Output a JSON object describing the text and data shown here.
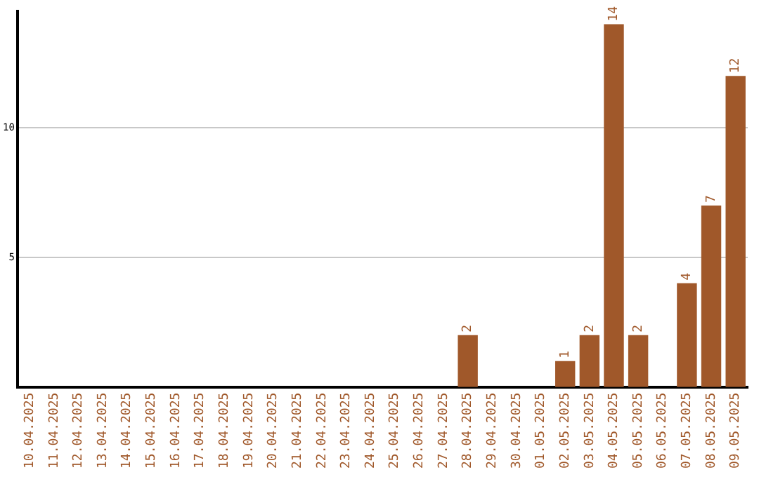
{
  "chart_data": {
    "type": "bar",
    "categories": [
      "10.04.2025",
      "11.04.2025",
      "12.04.2025",
      "13.04.2025",
      "14.04.2025",
      "15.04.2025",
      "16.04.2025",
      "17.04.2025",
      "18.04.2025",
      "19.04.2025",
      "20.04.2025",
      "21.04.2025",
      "22.04.2025",
      "23.04.2025",
      "24.04.2025",
      "25.04.2025",
      "26.04.2025",
      "27.04.2025",
      "28.04.2025",
      "29.04.2025",
      "30.04.2025",
      "01.05.2025",
      "02.05.2025",
      "03.05.2025",
      "04.05.2025",
      "05.05.2025",
      "06.05.2025",
      "07.05.2025",
      "08.05.2025",
      "09.05.2025"
    ],
    "values": [
      0,
      0,
      0,
      0,
      0,
      0,
      0,
      0,
      0,
      0,
      0,
      0,
      0,
      0,
      0,
      0,
      0,
      0,
      2,
      0,
      0,
      0,
      1,
      2,
      14,
      2,
      0,
      4,
      7,
      12
    ],
    "value_labels": [
      null,
      null,
      null,
      null,
      null,
      null,
      null,
      null,
      null,
      null,
      null,
      null,
      null,
      null,
      null,
      null,
      null,
      null,
      "2",
      null,
      null,
      null,
      "1",
      "2",
      "14",
      "2",
      null,
      "4",
      "7",
      "12"
    ],
    "color": "#a0582a",
    "ylim": [
      0,
      14.5
    ],
    "yticks": [
      5,
      10
    ],
    "grid": "y",
    "legend": false
  }
}
